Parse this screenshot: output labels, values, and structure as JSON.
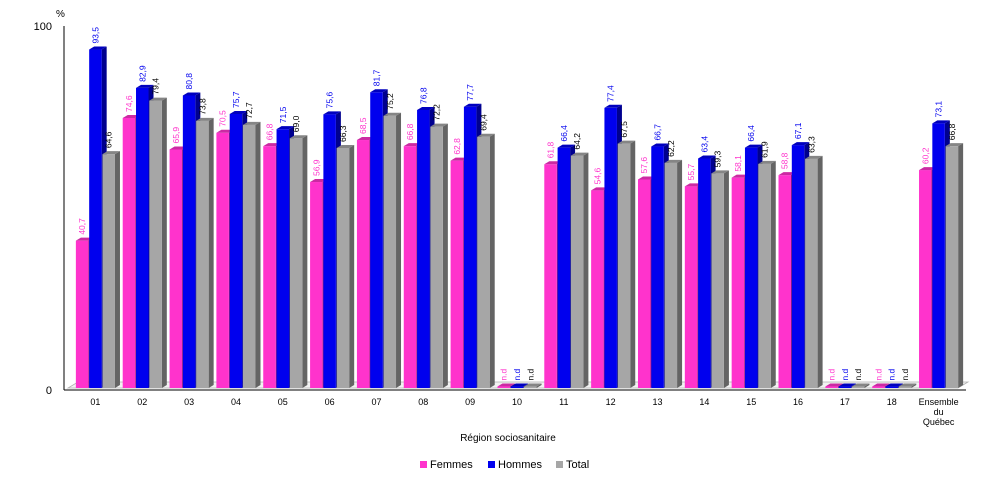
{
  "chart_data": {
    "type": "bar",
    "unit_label": "%",
    "xlabel": "Région sociosanitaire",
    "ylim": [
      0,
      100
    ],
    "y_ticks": [
      "0",
      "100"
    ],
    "grid": false,
    "legend_position": "bottom",
    "categories": [
      [
        "01"
      ],
      [
        "02"
      ],
      [
        "03"
      ],
      [
        "04"
      ],
      [
        "05"
      ],
      [
        "06"
      ],
      [
        "07"
      ],
      [
        "08"
      ],
      [
        "09"
      ],
      [
        "10"
      ],
      [
        "11"
      ],
      [
        "12"
      ],
      [
        "13"
      ],
      [
        "14"
      ],
      [
        "15"
      ],
      [
        "16"
      ],
      [
        "17"
      ],
      [
        "18"
      ],
      [
        "Ensemble",
        "du",
        "Québec"
      ]
    ],
    "series": [
      {
        "name": "Femmes",
        "color": "#ff33cc",
        "label_color": "#ff33cc",
        "values": [
          40.7,
          74.6,
          65.9,
          70.5,
          66.8,
          56.9,
          68.5,
          66.8,
          62.8,
          null,
          61.8,
          54.6,
          57.6,
          55.7,
          58.1,
          58.8,
          null,
          null,
          60.2
        ],
        "labels": [
          "40,7",
          "74,6",
          "65,9",
          "70,5",
          "66,8",
          "56,9",
          "68,5",
          "66,8",
          "62,8",
          "n.d",
          "61,8",
          "54,6",
          "57,6",
          "55,7",
          "58,1",
          "58,8",
          "n.d",
          "n.d",
          "60,2"
        ]
      },
      {
        "name": "Hommes",
        "color": "#0000ee",
        "label_color": "#0000ee",
        "values": [
          93.5,
          82.9,
          80.8,
          75.7,
          71.5,
          75.6,
          81.7,
          76.8,
          77.7,
          null,
          66.4,
          77.4,
          66.7,
          63.4,
          66.4,
          67.1,
          null,
          null,
          73.1
        ],
        "labels": [
          "93,5",
          "82,9",
          "80,8",
          "75,7",
          "71,5",
          "75,6",
          "81,7",
          "76,8",
          "77,7",
          "n.d",
          "66,4",
          "77,4",
          "66,7",
          "63,4",
          "66,4",
          "67,1",
          "n.d",
          "n.d",
          "73,1"
        ]
      },
      {
        "name": "Total",
        "color": "#a6a6a6",
        "label_color": "#000000",
        "values": [
          64.6,
          79.4,
          73.8,
          72.7,
          69.0,
          66.3,
          75.2,
          72.2,
          69.4,
          null,
          64.2,
          67.5,
          62.2,
          59.3,
          61.9,
          63.3,
          null,
          null,
          66.8
        ],
        "labels": [
          "64,6",
          "79,4",
          "73,8",
          "72,7",
          "69,0",
          "66,3",
          "75,2",
          "72,2",
          "69,4",
          "n.d",
          "64,2",
          "67,5",
          "62,2",
          "59,3",
          "61,9",
          "63,3",
          "n.d",
          "n.d",
          "66,8"
        ]
      }
    ]
  }
}
